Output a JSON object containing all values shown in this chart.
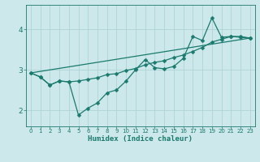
{
  "title": "",
  "xlabel": "Humidex (Indice chaleur)",
  "background_color": "#cce8ea",
  "grid_color": "#aed4d6",
  "line_color": "#1a7a6e",
  "xlim": [
    -0.5,
    23.5
  ],
  "ylim": [
    1.6,
    4.6
  ],
  "yticks": [
    2,
    3,
    4
  ],
  "xticks": [
    0,
    1,
    2,
    3,
    4,
    5,
    6,
    7,
    8,
    9,
    10,
    11,
    12,
    13,
    14,
    15,
    16,
    17,
    18,
    19,
    20,
    21,
    22,
    23
  ],
  "line1_x": [
    0,
    1,
    2,
    3,
    4,
    5,
    6,
    7,
    8,
    9,
    10,
    11,
    12,
    13,
    14,
    15,
    16,
    17,
    18,
    19,
    20,
    21,
    22,
    23
  ],
  "line1_y": [
    2.92,
    2.82,
    2.62,
    2.72,
    2.7,
    1.88,
    2.05,
    2.18,
    2.43,
    2.5,
    2.72,
    3.0,
    3.25,
    3.05,
    3.02,
    3.08,
    3.28,
    3.82,
    3.72,
    4.28,
    3.8,
    3.82,
    3.8,
    3.78
  ],
  "line2_x": [
    0,
    1,
    2,
    3,
    4,
    5,
    6,
    7,
    8,
    9,
    10,
    11,
    12,
    13,
    14,
    15,
    16,
    17,
    18,
    19,
    20,
    21,
    22,
    23
  ],
  "line2_y": [
    2.92,
    2.82,
    2.62,
    2.72,
    2.7,
    2.72,
    2.76,
    2.8,
    2.88,
    2.9,
    2.98,
    3.03,
    3.12,
    3.18,
    3.22,
    3.3,
    3.36,
    3.45,
    3.55,
    3.68,
    3.75,
    3.82,
    3.82,
    3.78
  ],
  "line3_x": [
    0,
    23
  ],
  "line3_y": [
    2.92,
    3.78
  ],
  "markersize": 2.5,
  "linewidth": 0.9
}
